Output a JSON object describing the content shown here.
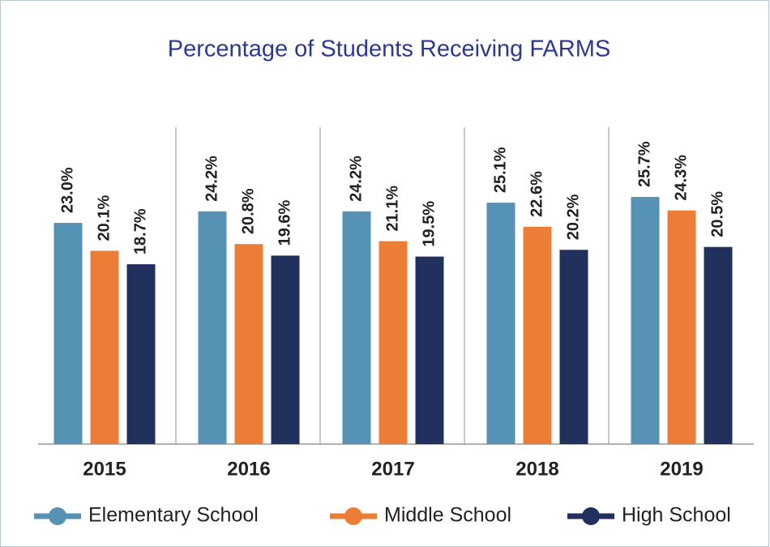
{
  "chart_data": {
    "type": "bar",
    "title": "Percentage of Students Receiving FARMS",
    "categories": [
      "2015",
      "2016",
      "2017",
      "2018",
      "2019"
    ],
    "ylim": [
      0,
      30
    ],
    "legend": "bottom",
    "series": [
      {
        "name": "Elementary School",
        "color": "#5592b4",
        "values": [
          23.0,
          24.2,
          24.2,
          25.1,
          25.7
        ],
        "value_labels": [
          "23.0%",
          "24.2%",
          "24.2%",
          "25.1%",
          "25.7%"
        ]
      },
      {
        "name": "Middle School",
        "color": "#ec7d37",
        "values": [
          20.1,
          20.8,
          21.1,
          22.6,
          24.3
        ],
        "value_labels": [
          "20.1%",
          "20.8%",
          "21.1%",
          "22.6%",
          "24.3%"
        ]
      },
      {
        "name": "High School",
        "color": "#22305e",
        "values": [
          18.7,
          19.6,
          19.5,
          20.2,
          20.5
        ],
        "value_labels": [
          "18.7%",
          "19.6%",
          "19.5%",
          "20.2%",
          "20.5%"
        ]
      }
    ]
  }
}
